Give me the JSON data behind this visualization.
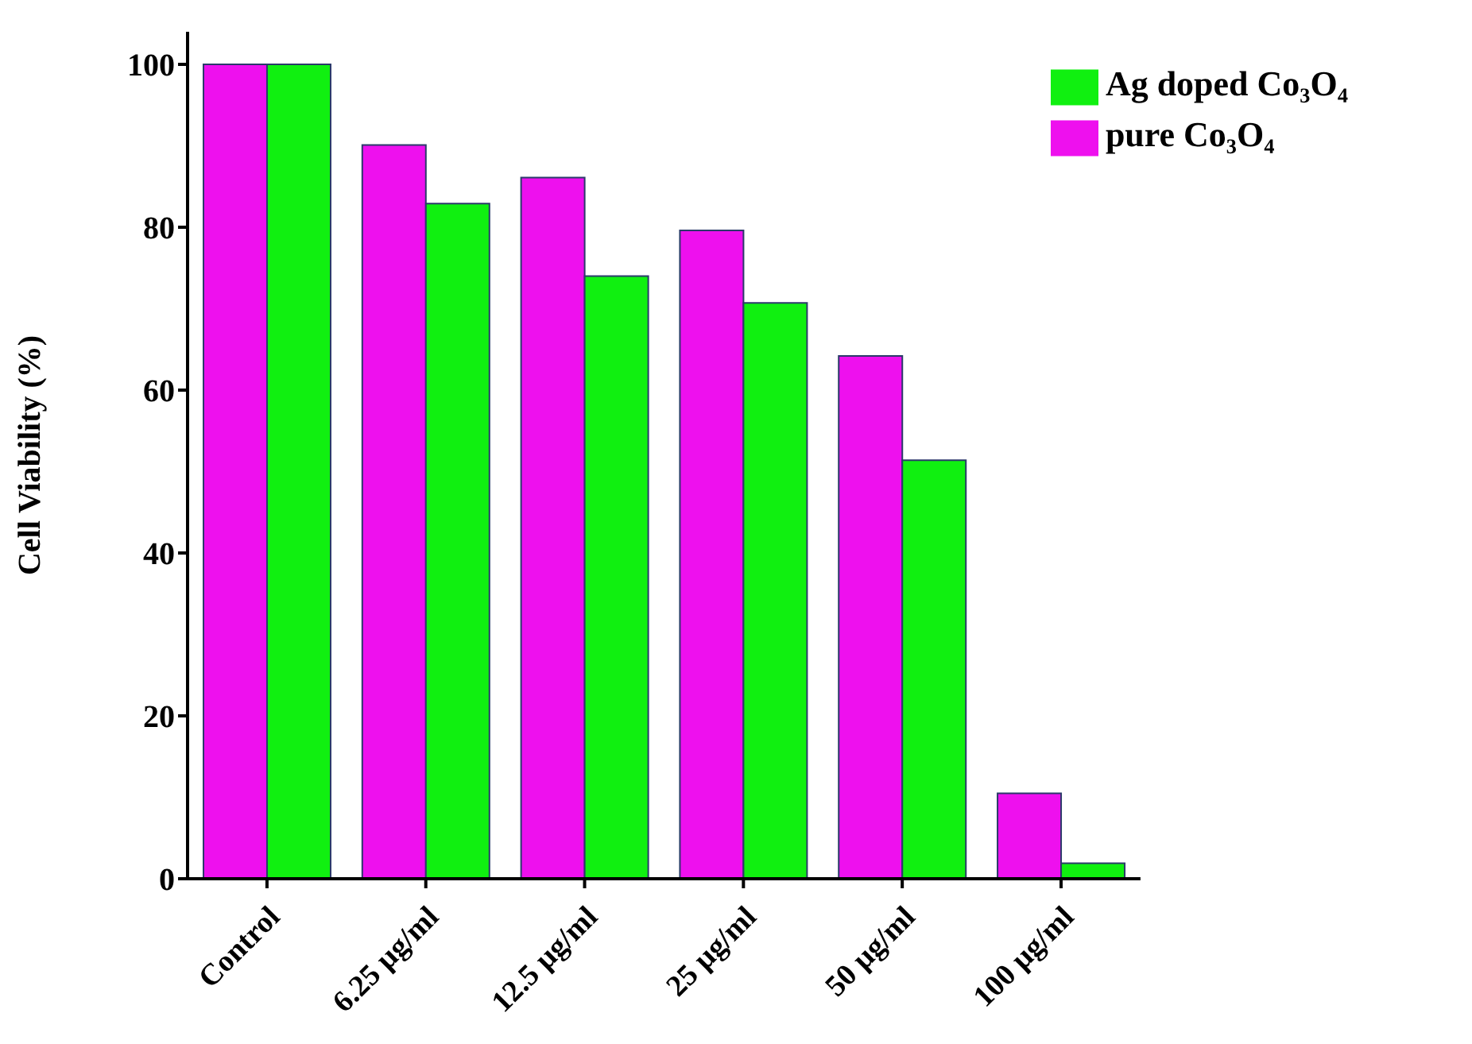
{
  "chart_data": {
    "type": "bar",
    "ylabel": "Cell Viability (%)",
    "categories": [
      "Control",
      "6.25 µg/ml",
      "12.5 µg/ml",
      "25 µg/ml",
      "50 µg/ml",
      "100 µg/ml"
    ],
    "series": [
      {
        "name": "pure Co₃O₄",
        "color": "#ee10ee",
        "values": [
          100,
          90.1,
          86.1,
          79.6,
          64.2,
          10.5
        ]
      },
      {
        "name": "Ag doped Co₃O₄",
        "color": "#10f010",
        "values": [
          100,
          82.9,
          74.0,
          70.7,
          51.4,
          1.9
        ]
      }
    ],
    "ylim": [
      0,
      104
    ],
    "yticks": [
      0,
      20,
      40,
      60,
      80,
      100
    ],
    "grid": false,
    "legend": "top right"
  }
}
